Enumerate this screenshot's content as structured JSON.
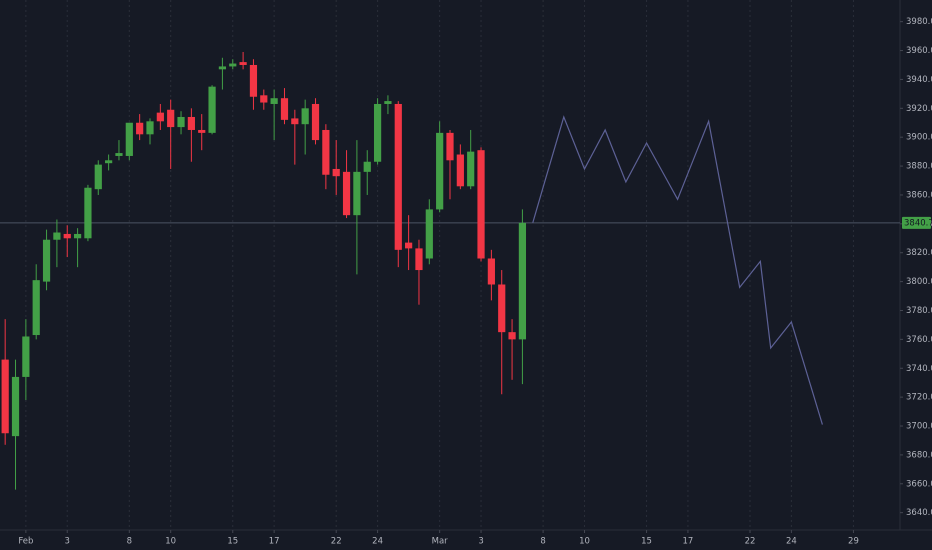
{
  "chart_data": {
    "type": "candlestick",
    "categories": [
      null,
      null,
      "Feb",
      null,
      null,
      null,
      "3",
      null,
      null,
      null,
      null,
      null,
      "8",
      null,
      null,
      null,
      "10",
      null,
      null,
      null,
      null,
      null,
      "15",
      null,
      null,
      null,
      "17",
      null,
      null,
      null,
      null,
      null,
      "22",
      null,
      null,
      null,
      "24",
      null,
      null,
      null,
      null,
      null,
      "Mar",
      null,
      null,
      null,
      "3",
      null,
      null,
      null,
      null,
      null,
      "8",
      null,
      null,
      null,
      "10",
      null,
      null,
      null,
      null,
      null,
      "15",
      null,
      null,
      null,
      "17",
      null,
      null,
      null,
      null,
      null,
      "22",
      null,
      null,
      null,
      "24",
      null,
      null,
      null,
      null,
      null,
      "29",
      null,
      null,
      null,
      null
    ],
    "candles": {
      "up_color": "#43a047",
      "down_color": "#f23645",
      "open": [
        3746,
        3693,
        3734,
        3763,
        3800,
        3829,
        3833,
        3830,
        3830,
        3864,
        3882,
        3887,
        3887,
        3910,
        3902,
        3917,
        3919,
        3907,
        3914,
        3905,
        3903,
        3947,
        3949,
        3952,
        3950,
        3929,
        3923,
        3927,
        3913,
        3909,
        3923,
        3905,
        3878,
        3876,
        3846,
        3876,
        3883,
        3923,
        3923,
        3827,
        3823,
        3816,
        3850,
        3903,
        3888,
        3866,
        3891,
        3816,
        3798,
        3765,
        3760,
        null,
        null,
        null,
        null,
        null,
        null,
        null,
        null,
        null,
        null,
        null,
        null,
        null,
        null,
        null,
        null,
        null,
        null,
        null,
        null,
        null,
        null,
        null,
        null,
        null,
        null,
        null,
        null,
        null,
        null,
        null,
        null,
        null,
        null,
        null,
        null
      ],
      "high": [
        3774,
        3746,
        3774,
        3812,
        3836,
        3843,
        3839,
        3837,
        3867,
        3884,
        3888,
        3898,
        3910,
        3916,
        3913,
        3923,
        3926,
        3918,
        3920,
        3916,
        3936,
        3955,
        3954,
        3959,
        3954,
        3933,
        3933,
        3934,
        3919,
        3926,
        3927,
        3909,
        3898,
        3891,
        3898,
        3891,
        3927,
        3929,
        3925,
        3846,
        3829,
        3857,
        3911,
        3905,
        3895,
        3905,
        3893,
        3822,
        3808,
        3774,
        3850,
        null,
        null,
        null,
        null,
        null,
        null,
        null,
        null,
        null,
        null,
        null,
        null,
        null,
        null,
        null,
        null,
        null,
        null,
        null,
        null,
        null,
        null,
        null,
        null,
        null,
        null,
        null,
        null,
        null,
        null,
        null,
        null,
        null,
        null,
        null,
        null
      ],
      "low": [
        3687,
        3656,
        3718,
        3760,
        3794,
        3810,
        3817,
        3810,
        3828,
        3860,
        3877,
        3884,
        3884,
        3898,
        3895,
        3905,
        3878,
        3902,
        3883,
        3891,
        3902,
        3933,
        3947,
        3947,
        3919,
        3919,
        3898,
        3909,
        3881,
        3888,
        3895,
        3864,
        3860,
        3844,
        3805,
        3860,
        3881,
        3916,
        3810,
        3808,
        3784,
        3812,
        3848,
        3857,
        3864,
        3864,
        3814,
        3787,
        3722,
        3732,
        3729,
        null,
        null,
        null,
        null,
        null,
        null,
        null,
        null,
        null,
        null,
        null,
        null,
        null,
        null,
        null,
        null,
        null,
        null,
        null,
        null,
        null,
        null,
        null,
        null,
        null,
        null,
        null,
        null,
        null,
        null,
        null,
        null,
        null,
        null,
        null,
        null
      ],
      "close": [
        3695,
        3734,
        3762,
        3801,
        3829,
        3834,
        3830,
        3833,
        3865,
        3881,
        3884,
        3889,
        3910,
        3902,
        3911,
        3911,
        3907,
        3914,
        3905,
        3903,
        3935,
        3949,
        3951,
        3950,
        3928,
        3924,
        3927,
        3912,
        3909,
        3920,
        3898,
        3874,
        3873,
        3846,
        3876,
        3883,
        3923,
        3925,
        3822,
        3823,
        3808,
        3850,
        3903,
        3884,
        3866,
        3890,
        3816,
        3798,
        3765,
        3760,
        3840.7,
        null,
        null,
        null,
        null,
        null,
        null,
        null,
        null,
        null,
        null,
        null,
        null,
        null,
        null,
        null,
        null,
        null,
        null,
        null,
        null,
        null,
        null,
        null,
        null,
        null,
        null,
        null,
        null,
        null,
        null,
        null,
        null,
        null,
        null,
        null,
        null
      ]
    },
    "projection": {
      "color": "#5d6196",
      "values": [
        null,
        null,
        null,
        null,
        null,
        null,
        null,
        null,
        null,
        null,
        null,
        null,
        null,
        null,
        null,
        null,
        null,
        null,
        null,
        null,
        null,
        null,
        null,
        null,
        null,
        null,
        null,
        null,
        null,
        null,
        null,
        null,
        null,
        null,
        null,
        null,
        null,
        null,
        null,
        null,
        null,
        null,
        null,
        null,
        null,
        null,
        null,
        null,
        null,
        null,
        null,
        3840.7,
        3865.3,
        3889.7,
        3914,
        3896,
        3878,
        3891.5,
        3905,
        3887,
        3869,
        3882.5,
        3896,
        3883,
        3870,
        3857,
        3875,
        3893,
        3911,
        3872.7,
        3834.3,
        3796,
        3805,
        3814,
        3754,
        3763,
        3772,
        3748.3,
        3724.7,
        3701,
        null,
        null,
        null,
        null,
        null,
        null,
        null
      ]
    },
    "price_line": {
      "value": 3840.7,
      "label": "3840.70",
      "color": "#43a047"
    },
    "ylim": [
      3628,
      3995
    ],
    "yticks": [
      {
        "value": 3640,
        "label": "3640.00"
      },
      {
        "value": 3660,
        "label": "3660.00"
      },
      {
        "value": 3680,
        "label": "3680.00"
      },
      {
        "value": 3700,
        "label": "3700.00"
      },
      {
        "value": 3720,
        "label": "3720.00"
      },
      {
        "value": 3740,
        "label": "3740.00"
      },
      {
        "value": 3760,
        "label": "3760.00"
      },
      {
        "value": 3780,
        "label": "3780.00"
      },
      {
        "value": 3800,
        "label": "3800.00"
      },
      {
        "value": 3820,
        "label": "3820.00"
      },
      {
        "value": 3840,
        "label": "3840.00"
      },
      {
        "value": 3860,
        "label": "3860.00"
      },
      {
        "value": 3880,
        "label": "3880.00"
      },
      {
        "value": 3900,
        "label": "3900.00"
      },
      {
        "value": 3920,
        "label": "3920.00"
      },
      {
        "value": 3940,
        "label": "3940.00"
      },
      {
        "value": 3960,
        "label": "3960.00"
      },
      {
        "value": 3980,
        "label": "3980.00"
      }
    ],
    "xgrid": true,
    "ygrid": false
  }
}
